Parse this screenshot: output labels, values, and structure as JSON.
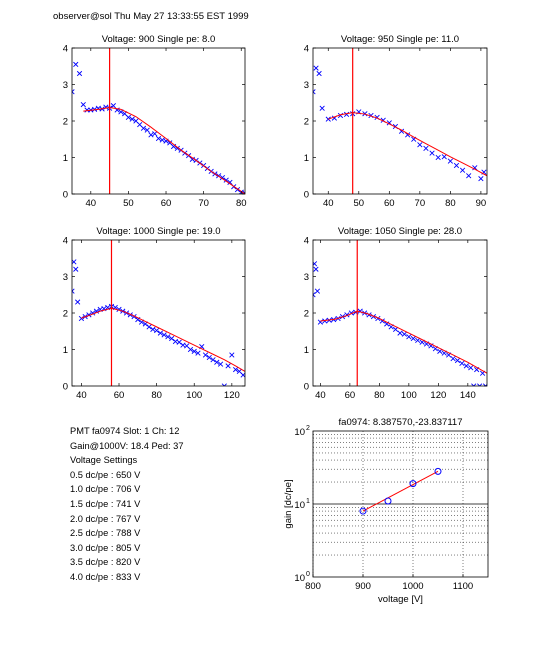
{
  "header": "observer@sol  Thu May 27 13:33:55 EST 1999",
  "info": {
    "pmt_line": "PMT fa0974 Slot: 1 Ch: 12",
    "gain_line": "Gain@1000V: 18.4 Ped: 37",
    "settings_title": "Voltage Settings",
    "settings": [
      "0.5 dc/pe : 650 V",
      "1.0 dc/pe : 706 V",
      "1.5 dc/pe : 741 V",
      "2.0 dc/pe : 767 V",
      "2.5 dc/pe : 788 V",
      "3.0 dc/pe : 805 V",
      "3.5 dc/pe : 820 V",
      "4.0 dc/pe : 833 V"
    ]
  },
  "colors": {
    "data": "#0000ff",
    "fit": "#ff0000",
    "axes": "#000000"
  },
  "chart_data": [
    {
      "type": "scatter",
      "title": "Voltage: 900 Single pe: 8.0",
      "xlim": [
        35,
        81
      ],
      "ylim": [
        0,
        4
      ],
      "xticks": [
        40,
        50,
        60,
        70,
        80
      ],
      "yticks": [
        0,
        1,
        2,
        3,
        4
      ],
      "marker_line_x": 45,
      "data_x": [
        35,
        36,
        37,
        38,
        39,
        40,
        41,
        42,
        43,
        44,
        45,
        46,
        47,
        48,
        49,
        50,
        51,
        52,
        53,
        54,
        55,
        56,
        57,
        58,
        59,
        60,
        61,
        62,
        63,
        64,
        65,
        66,
        67,
        68,
        69,
        70,
        71,
        72,
        73,
        74,
        75,
        76,
        77,
        78,
        79,
        80,
        81
      ],
      "data_y": [
        2.8,
        3.55,
        3.3,
        2.45,
        2.3,
        2.3,
        2.32,
        2.35,
        2.33,
        2.38,
        2.35,
        2.42,
        2.3,
        2.25,
        2.2,
        2.1,
        2.05,
        2.0,
        1.9,
        1.8,
        1.75,
        1.62,
        1.65,
        1.52,
        1.48,
        1.45,
        1.4,
        1.3,
        1.25,
        1.2,
        1.12,
        1.05,
        0.95,
        0.92,
        0.85,
        0.78,
        0.7,
        0.62,
        0.55,
        0.5,
        0.45,
        0.38,
        0.32,
        0.2,
        0.12,
        0.05,
        0.02
      ],
      "fit_x": [
        38,
        42,
        45,
        48,
        52,
        56,
        60,
        64,
        68,
        72,
        76,
        81
      ],
      "fit_y": [
        2.27,
        2.32,
        2.37,
        2.32,
        2.12,
        1.83,
        1.52,
        1.2,
        0.92,
        0.62,
        0.35,
        0.0
      ]
    },
    {
      "type": "scatter",
      "title": "Voltage: 950 Single pe: 11.0",
      "xlim": [
        35,
        92
      ],
      "ylim": [
        0,
        4
      ],
      "xticks": [
        40,
        50,
        60,
        70,
        80,
        90
      ],
      "yticks": [
        0,
        1,
        2,
        3,
        4
      ],
      "marker_line_x": 48,
      "data_x": [
        35,
        36,
        37,
        38,
        40,
        42,
        44,
        46,
        48,
        50,
        52,
        54,
        56,
        58,
        60,
        62,
        64,
        66,
        68,
        70,
        72,
        74,
        76,
        78,
        80,
        82,
        84,
        86,
        88,
        90,
        91
      ],
      "data_y": [
        2.8,
        3.45,
        3.3,
        2.35,
        2.05,
        2.08,
        2.15,
        2.18,
        2.2,
        2.25,
        2.2,
        2.15,
        2.1,
        2.02,
        1.95,
        1.85,
        1.72,
        1.62,
        1.5,
        1.35,
        1.25,
        1.12,
        1.0,
        1.02,
        0.9,
        0.78,
        0.65,
        0.5,
        0.72,
        0.42,
        0.6
      ],
      "fit_x": [
        40,
        44,
        48,
        52,
        56,
        60,
        64,
        68,
        72,
        76,
        80,
        84,
        88,
        92
      ],
      "fit_y": [
        2.05,
        2.17,
        2.23,
        2.19,
        2.08,
        1.92,
        1.75,
        1.56,
        1.38,
        1.2,
        1.02,
        0.85,
        0.68,
        0.5
      ]
    },
    {
      "type": "scatter",
      "title": "Voltage: 1000 Single pe: 19.0",
      "xlim": [
        35,
        127
      ],
      "ylim": [
        0,
        4
      ],
      "xticks": [
        40,
        60,
        80,
        100,
        120
      ],
      "yticks": [
        0,
        1,
        2,
        3,
        4
      ],
      "marker_line_x": 56,
      "data_x": [
        35,
        36,
        37,
        38,
        40,
        42,
        44,
        46,
        48,
        50,
        52,
        54,
        56,
        58,
        60,
        62,
        64,
        66,
        68,
        70,
        72,
        74,
        76,
        78,
        80,
        82,
        84,
        86,
        88,
        90,
        92,
        94,
        96,
        98,
        100,
        102,
        104,
        106,
        108,
        110,
        112,
        114,
        116,
        118,
        120,
        122,
        124,
        126
      ],
      "data_y": [
        2.6,
        3.4,
        3.2,
        2.3,
        1.85,
        1.9,
        1.95,
        2.0,
        2.05,
        2.1,
        2.12,
        2.15,
        2.18,
        2.15,
        2.1,
        2.05,
        2.0,
        1.95,
        1.9,
        1.82,
        1.75,
        1.7,
        1.62,
        1.55,
        1.52,
        1.45,
        1.4,
        1.35,
        1.3,
        1.22,
        1.2,
        1.12,
        1.1,
        1.0,
        0.95,
        0.9,
        1.08,
        0.85,
        0.78,
        0.72,
        0.65,
        0.6,
        0.0,
        0.55,
        0.85,
        0.45,
        0.4,
        0.3
      ],
      "fit_x": [
        40,
        45,
        50,
        56,
        62,
        68,
        74,
        80,
        86,
        92,
        98,
        104,
        110,
        116,
        122,
        127
      ],
      "fit_y": [
        1.86,
        1.95,
        2.05,
        2.13,
        2.05,
        1.92,
        1.77,
        1.62,
        1.47,
        1.32,
        1.17,
        1.02,
        0.87,
        0.72,
        0.55,
        0.4
      ]
    },
    {
      "type": "scatter",
      "title": "Voltage: 1050 Single pe: 28.0",
      "xlim": [
        35,
        153
      ],
      "ylim": [
        0,
        4
      ],
      "xticks": [
        40,
        60,
        80,
        100,
        120,
        140
      ],
      "yticks": [
        0,
        1,
        2,
        3,
        4
      ],
      "marker_line_x": 65,
      "data_x": [
        35,
        36,
        37,
        38,
        40,
        43,
        46,
        49,
        52,
        55,
        58,
        61,
        64,
        67,
        70,
        73,
        76,
        79,
        82,
        85,
        88,
        91,
        94,
        97,
        100,
        103,
        106,
        109,
        112,
        115,
        118,
        121,
        124,
        127,
        130,
        133,
        136,
        139,
        142,
        144,
        146,
        148,
        150,
        152
      ],
      "data_y": [
        2.5,
        3.35,
        3.2,
        2.6,
        1.75,
        1.78,
        1.8,
        1.82,
        1.85,
        1.9,
        1.95,
        2.0,
        2.02,
        2.05,
        2.0,
        1.95,
        1.9,
        1.85,
        1.78,
        1.7,
        1.62,
        1.55,
        1.45,
        1.42,
        1.35,
        1.3,
        1.25,
        1.2,
        1.15,
        1.1,
        1.02,
        0.95,
        0.9,
        0.85,
        0.75,
        0.7,
        0.62,
        0.55,
        0.5,
        0.0,
        0.45,
        0.0,
        0.35,
        0.0
      ],
      "fit_x": [
        40,
        50,
        58,
        65,
        72,
        80,
        90,
        100,
        110,
        120,
        130,
        140,
        153
      ],
      "fit_y": [
        1.78,
        1.83,
        1.93,
        2.05,
        1.98,
        1.85,
        1.65,
        1.45,
        1.25,
        1.05,
        0.85,
        0.65,
        0.35
      ]
    },
    {
      "type": "scatter",
      "title": "fa0974: 8.387570,-23.837117",
      "xlabel": "voltage [V]",
      "ylabel": "gain [dc/pe]",
      "xlim": [
        800,
        1150
      ],
      "ylim": [
        1,
        100
      ],
      "yscale": "log",
      "xticks": [
        800,
        900,
        1000,
        1100
      ],
      "ytick_labels": [
        "10",
        "10",
        "10"
      ],
      "ytick_exponents": [
        "0",
        "1",
        "2"
      ],
      "grid": true,
      "points_x": [
        900,
        950,
        1000,
        1050
      ],
      "points_y": [
        8.0,
        11.0,
        19.0,
        28.0
      ],
      "fit_x": [
        900,
        1050
      ],
      "fit_y": [
        8.0,
        28.0
      ]
    }
  ]
}
